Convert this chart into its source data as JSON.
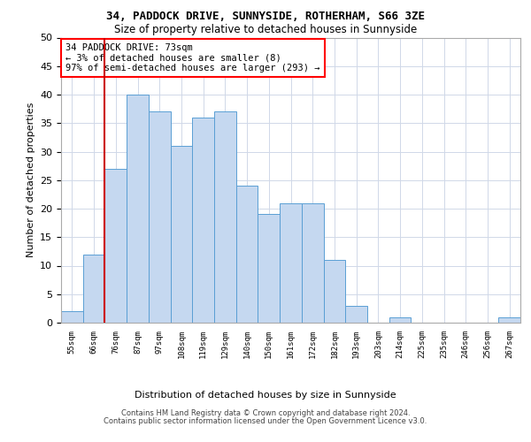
{
  "title1": "34, PADDOCK DRIVE, SUNNYSIDE, ROTHERHAM, S66 3ZE",
  "title2": "Size of property relative to detached houses in Sunnyside",
  "xlabel": "Distribution of detached houses by size in Sunnyside",
  "ylabel": "Number of detached properties",
  "footer1": "Contains HM Land Registry data © Crown copyright and database right 2024.",
  "footer2": "Contains public sector information licensed under the Open Government Licence v3.0.",
  "annotation_title": "34 PADDOCK DRIVE: 73sqm",
  "annotation_line1": "← 3% of detached houses are smaller (8)",
  "annotation_line2": "97% of semi-detached houses are larger (293) →",
  "bar_color": "#c5d8f0",
  "bar_edge_color": "#5a9fd4",
  "red_line_color": "#cc0000",
  "grid_color": "#d0d8e8",
  "categories": [
    "55sqm",
    "66sqm",
    "76sqm",
    "87sqm",
    "97sqm",
    "108sqm",
    "119sqm",
    "129sqm",
    "140sqm",
    "150sqm",
    "161sqm",
    "172sqm",
    "182sqm",
    "193sqm",
    "203sqm",
    "214sqm",
    "225sqm",
    "235sqm",
    "246sqm",
    "256sqm",
    "267sqm"
  ],
  "values": [
    2,
    12,
    27,
    40,
    37,
    31,
    36,
    37,
    24,
    19,
    21,
    21,
    11,
    3,
    0,
    1,
    0,
    0,
    0,
    0,
    1
  ],
  "red_line_index": 2,
  "ylim": [
    0,
    50
  ],
  "yticks": [
    0,
    5,
    10,
    15,
    20,
    25,
    30,
    35,
    40,
    45,
    50
  ]
}
